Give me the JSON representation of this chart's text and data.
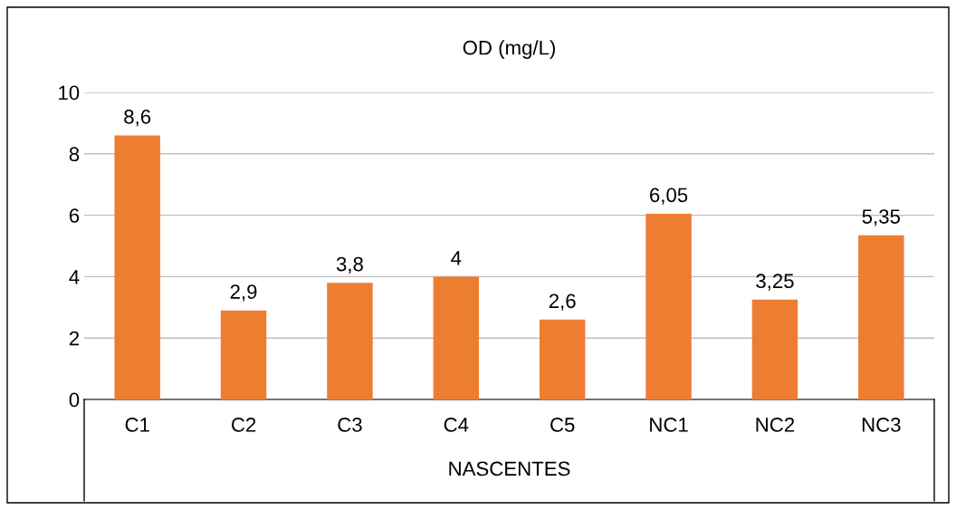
{
  "chart_data": {
    "type": "bar",
    "title": "OD (mg/L)",
    "xlabel": "NASCENTES",
    "categories": [
      "C1",
      "C2",
      "C3",
      "C4",
      "C5",
      "NC1",
      "NC2",
      "NC3"
    ],
    "values": [
      8.6,
      2.9,
      3.8,
      4,
      2.6,
      6.05,
      3.25,
      5.35
    ],
    "value_labels": [
      "8,6",
      "2,9",
      "3,8",
      "4",
      "2,6",
      "6,05",
      "3,25",
      "5,35"
    ],
    "color": "#ed7d31",
    "ylim": [
      0,
      10
    ],
    "yticks": [
      0,
      2,
      4,
      6,
      8,
      10
    ],
    "grid": "y",
    "legend": false
  }
}
